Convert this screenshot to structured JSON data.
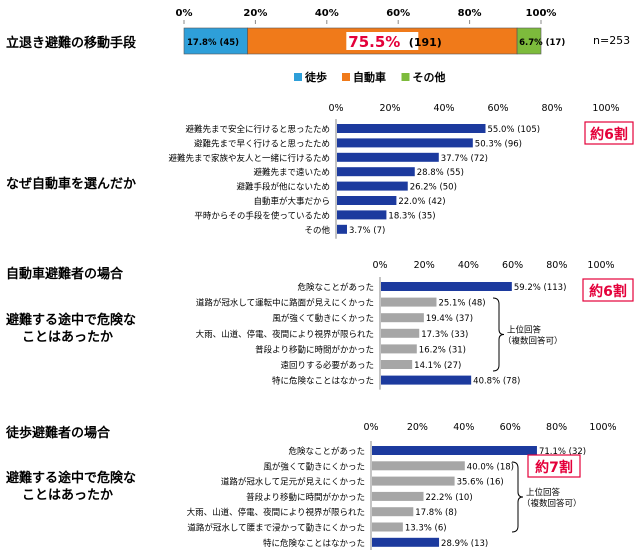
{
  "chart_data": [
    {
      "type": "bar",
      "stacked": true,
      "orientation": "horizontal",
      "title": "立退き避難の移動手段",
      "xlim": [
        0,
        100
      ],
      "xticks": [
        "0%",
        "20%",
        "40%",
        "60%",
        "80%",
        "100%"
      ],
      "n_label": "n=253",
      "series": [
        {
          "name": "徒歩",
          "value": 17.8,
          "count": 45,
          "label": "17.8% (45)",
          "color": "#2e9fd9"
        },
        {
          "name": "自動車",
          "value": 75.5,
          "count": 191,
          "label_pct": "75.5%",
          "label_count": "(191)",
          "color": "#f07a1a"
        },
        {
          "name": "その他",
          "value": 6.7,
          "count": 17,
          "label": "6.7% (17)",
          "color": "#7dbb3c"
        }
      ],
      "legend_position": "bottom"
    },
    {
      "type": "bar",
      "orientation": "horizontal",
      "title": "なぜ自動車を選んだか",
      "xlim": [
        0,
        100
      ],
      "xticks": [
        "0%",
        "20%",
        "40%",
        "60%",
        "80%",
        "100%"
      ],
      "categories": [
        "避難先まで安全に行けると思ったため",
        "避難先まで早く行けると思ったため",
        "避難先まで家族や友人と一緒に行けるため",
        "避難先まで遠いため",
        "避難手段が他にないため",
        "自動車が大事だから",
        "平時からその手段を使っているため",
        "その他"
      ],
      "values": [
        55.0,
        50.3,
        37.7,
        28.8,
        26.2,
        22.0,
        18.3,
        3.7
      ],
      "labels": [
        "55.0% (105)",
        "50.3% (96)",
        "37.7% (72)",
        "28.8% (55)",
        "26.2% (50)",
        "22.0% (42)",
        "18.3% (35)",
        "3.7% (7)"
      ],
      "bar_colors": [
        "#1c3a9e",
        "#1c3a9e",
        "#1c3a9e",
        "#1c3a9e",
        "#1c3a9e",
        "#1c3a9e",
        "#1c3a9e",
        "#1c3a9e"
      ],
      "callout": "約6割"
    },
    {
      "type": "bar",
      "orientation": "horizontal",
      "section": "自動車避難者の場合",
      "title": "避難する途中で危険なことはあったか",
      "xlim": [
        0,
        100
      ],
      "xticks": [
        "0%",
        "20%",
        "40%",
        "60%",
        "80%",
        "100%"
      ],
      "categories": [
        "危険なことがあった",
        "道路が冠水して運転中に路面が見えにくかった",
        "風が強くて動きにくかった",
        "大雨、山道、停電、夜間により視界が限られた",
        "普段より移動に時間がかかった",
        "遠回りする必要があった",
        "特に危険なことはなかった"
      ],
      "values": [
        59.2,
        25.1,
        19.4,
        17.3,
        16.2,
        14.1,
        40.8
      ],
      "labels": [
        "59.2% (113)",
        "25.1% (48)",
        "19.4% (37)",
        "17.3% (33)",
        "16.2% (31)",
        "14.1% (27)",
        "40.8% (78)"
      ],
      "bar_colors": [
        "#1c3a9e",
        "#a6a6a6",
        "#a6a6a6",
        "#a6a6a6",
        "#a6a6a6",
        "#a6a6a6",
        "#1c3a9e"
      ],
      "callout": "約6割",
      "bracket_note": [
        "上位回答",
        "（複数回答可）"
      ]
    },
    {
      "type": "bar",
      "orientation": "horizontal",
      "section": "徒歩避難者の場合",
      "title": "避難する途中で危険なことはあったか",
      "xlim": [
        0,
        100
      ],
      "xticks": [
        "0%",
        "20%",
        "40%",
        "60%",
        "80%",
        "100%"
      ],
      "categories": [
        "危険なことがあった",
        "風が強くて動きにくかった",
        "道路が冠水して足元が見えにくかった",
        "普段より移動に時間がかかった",
        "大雨、山道、停電、夜間により視界が限られた",
        "道路が冠水して腰まで浸かって動きにくかった",
        "特に危険なことはなかった"
      ],
      "values": [
        71.1,
        40.0,
        35.6,
        22.2,
        17.8,
        13.3,
        28.9
      ],
      "labels": [
        "71.1% (32)",
        "40.0% (18)",
        "35.6% (16)",
        "22.2% (10)",
        "17.8% (8)",
        "13.3% (6)",
        "28.9% (13)"
      ],
      "bar_colors": [
        "#1c3a9e",
        "#a6a6a6",
        "#a6a6a6",
        "#a6a6a6",
        "#a6a6a6",
        "#a6a6a6",
        "#1c3a9e"
      ],
      "callout": "約7割",
      "bracket_note": [
        "上位回答",
        "（複数回答可）"
      ]
    }
  ],
  "text": {
    "q1": "立退き避難の移動手段",
    "q2": "なぜ自動車を選んだか",
    "sec3": "自動車避難者の場合",
    "q3_line1": "避難する途中で危険な",
    "q3_line2": "ことはあったか",
    "sec4": "徒歩避難者の場合",
    "q4_line1": "避難する途中で危険な",
    "q4_line2": "ことはあったか"
  }
}
